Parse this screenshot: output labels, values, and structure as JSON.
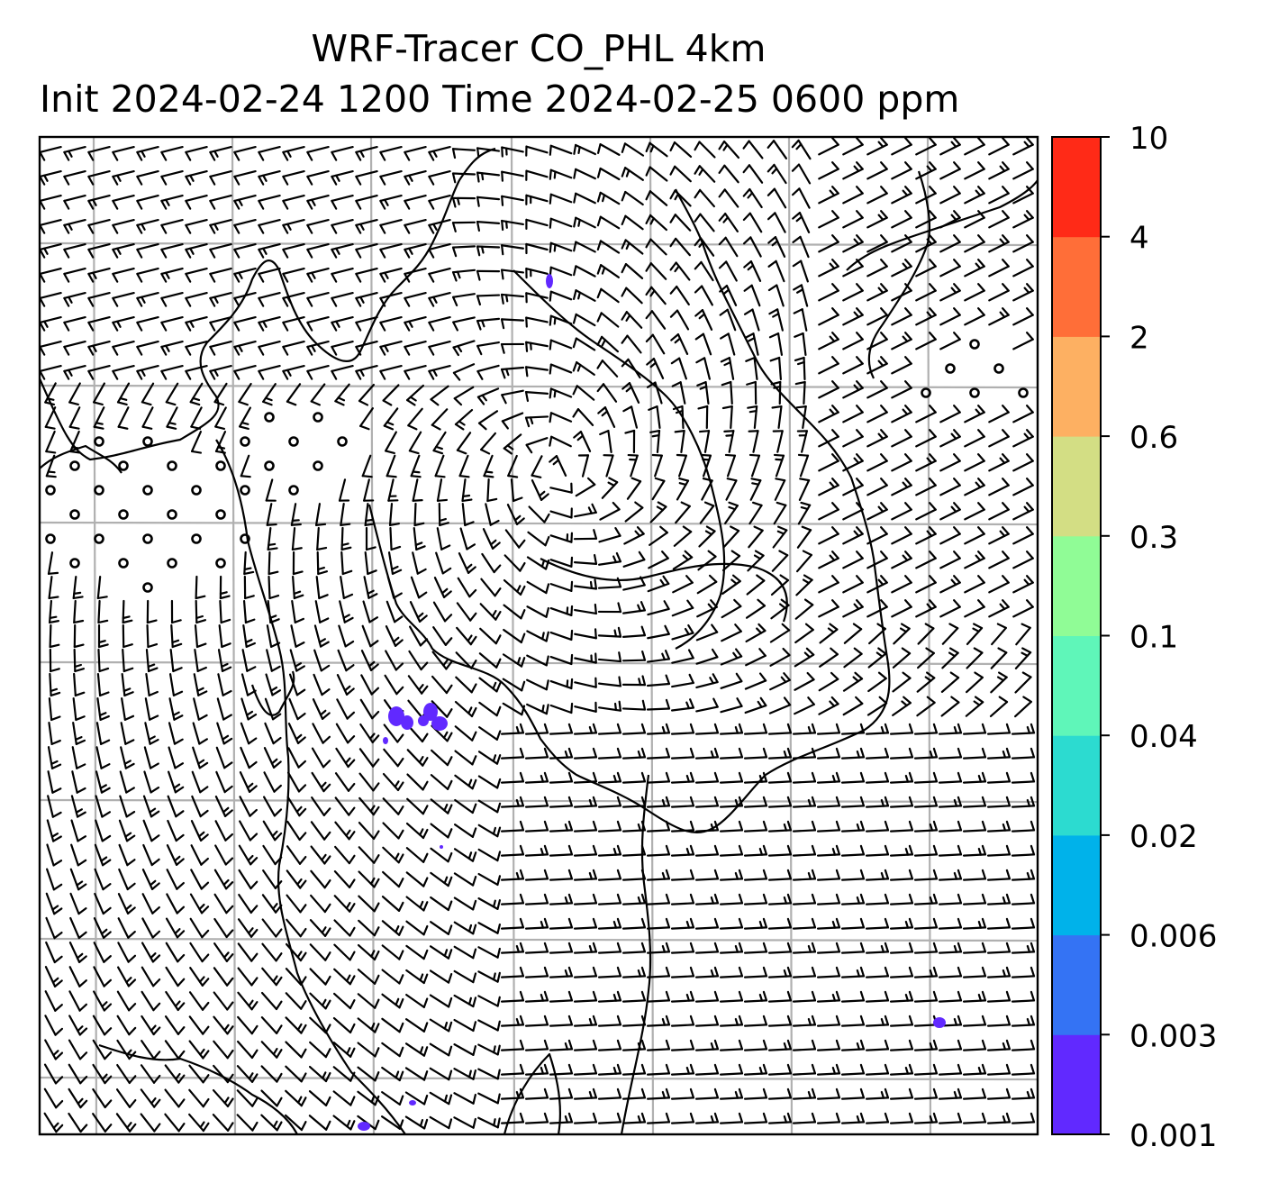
{
  "title": {
    "line1": "WRF-Tracer CO_PHL 4km",
    "line2": "Init 2024-02-24 1200 Time 2024-02-25 0600 ppm"
  },
  "colorbar": {
    "levels": [
      "0.001",
      "0.003",
      "0.006",
      "0.02",
      "0.04",
      "0.1",
      "0.3",
      "0.6",
      "2",
      "4",
      "10"
    ],
    "colors": [
      "#6129ff",
      "#3473f4",
      "#00b2ea",
      "#2cdbd0",
      "#5ff6b9",
      "#90fc96",
      "#d3de84",
      "#fdb062",
      "#ff6e38",
      "#ff2a17"
    ]
  },
  "map": {
    "background": "#ffffff",
    "gridline_color": "#b0b0b0",
    "barb_color": "#000000",
    "coastline_color": "#000000",
    "tracer_color": "#6129ff",
    "calm_marker": "circle"
  }
}
